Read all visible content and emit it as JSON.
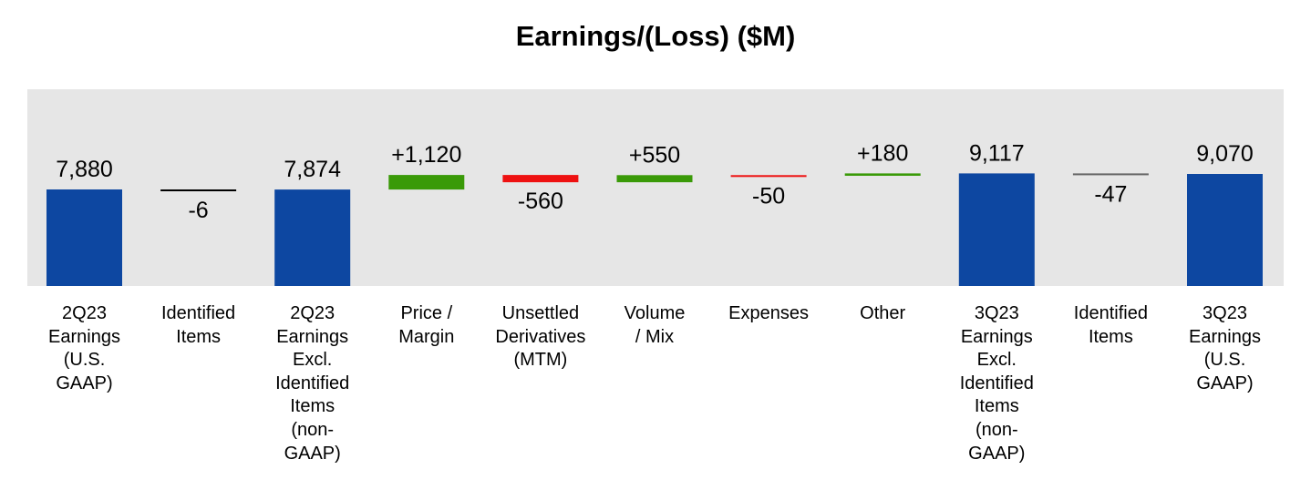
{
  "chart_data": {
    "type": "bar",
    "subtype": "waterfall",
    "title": "Earnings/(Loss) ($M)",
    "xlabel": "",
    "ylabel": "",
    "grid": false,
    "legend": "none",
    "colors": {
      "total": "#0d47a1",
      "increase": "#3a9a08",
      "decrease": "#ee1111",
      "neutral": "#000000",
      "neutral_grey": "#666666",
      "plot_background": "#e6e6e6"
    },
    "categories": [
      "2Q23 Earnings (U.S. GAAP)",
      "Identified Items",
      "2Q23 Earnings Excl. Identified Items (non-GAAP)",
      "Price / Margin",
      "Unsettled Derivatives (MTM)",
      "Volume / Mix",
      "Expenses",
      "Other",
      "3Q23 Earnings Excl. Identified Items (non-GAAP)",
      "Identified Items",
      "3Q23 Earnings (U.S. GAAP)"
    ],
    "label_lines": [
      [
        "2Q23",
        "Earnings",
        "(U.S.",
        "GAAP)"
      ],
      [
        "Identified",
        "Items"
      ],
      [
        "2Q23",
        "Earnings",
        "Excl.",
        "Identified",
        "Items",
        "(non-",
        "GAAP)"
      ],
      [
        "Price /",
        "Margin"
      ],
      [
        "Unsettled",
        "Derivatives",
        "(MTM)"
      ],
      [
        "Volume",
        "/ Mix"
      ],
      [
        "Expenses"
      ],
      [
        "Other"
      ],
      [
        "3Q23",
        "Earnings",
        "Excl.",
        "Identified",
        "Items",
        "(non-",
        "GAAP)"
      ],
      [
        "Identified",
        "Items"
      ],
      [
        "3Q23",
        "Earnings",
        "(U.S.",
        "GAAP)"
      ]
    ],
    "values": [
      7880,
      -6,
      7874,
      1120,
      -560,
      550,
      -50,
      180,
      9117,
      -47,
      9070
    ],
    "kinds": [
      "total",
      "change",
      "total",
      "change",
      "change",
      "change",
      "change",
      "change",
      "total",
      "change",
      "total"
    ],
    "value_labels": [
      "7,880",
      "-6",
      "7,874",
      "+1,120",
      "-560",
      "+550",
      "-50",
      "+180",
      "9,117",
      "-47",
      "9,070"
    ]
  }
}
